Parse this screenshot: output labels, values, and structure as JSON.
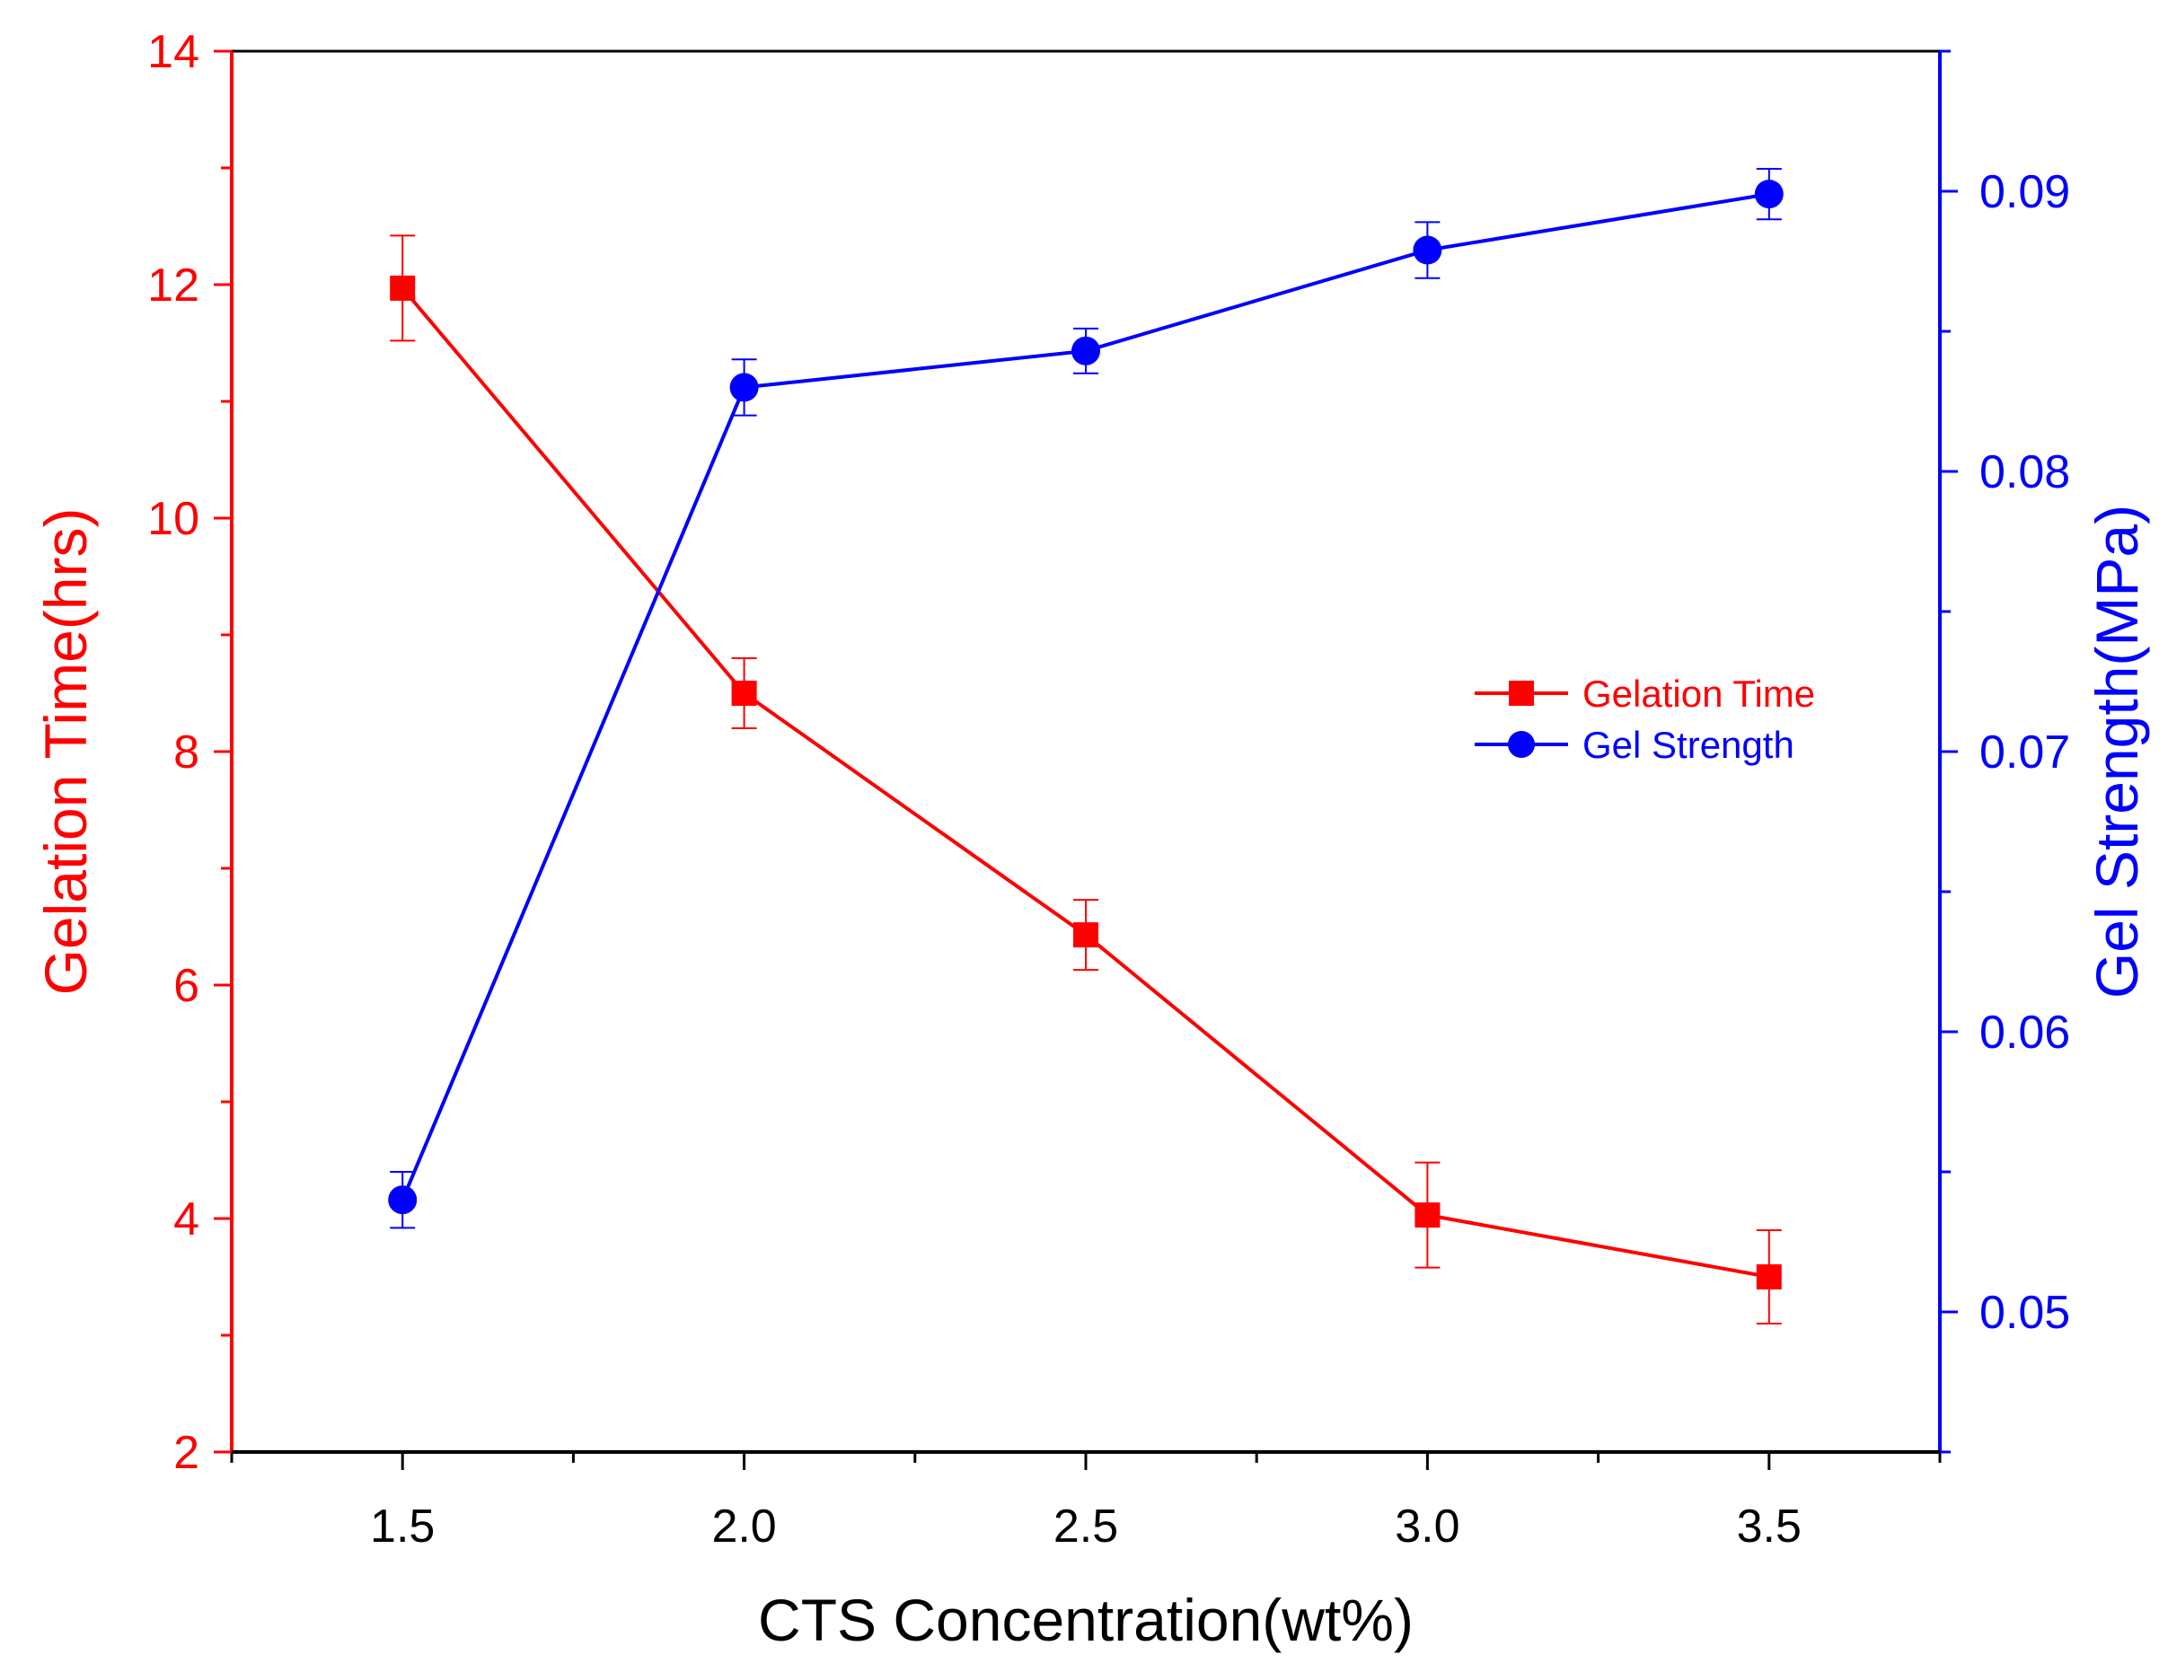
{
  "chart_data": {
    "type": "line",
    "title": "",
    "xlabel": "CTS Concentration(wt%)",
    "x": [
      1.5,
      2.0,
      2.5,
      3.0,
      3.5
    ],
    "xlim": [
      1.25,
      3.75
    ],
    "x_tick_labels": [
      "1.5",
      "2.0",
      "2.5",
      "3.0",
      "3.5"
    ],
    "x_tick_values": [
      1.5,
      2.0,
      2.5,
      3.0,
      3.5
    ],
    "y_left": {
      "label": "Gelation Time(hrs)",
      "lim": [
        2,
        14
      ],
      "tick_values": [
        2,
        4,
        6,
        8,
        10,
        12,
        14
      ],
      "tick_labels": [
        "2",
        "4",
        "6",
        "8",
        "10",
        "12",
        "14"
      ],
      "color": "#ff0000"
    },
    "y_right": {
      "label": "Gel Strength(MPa)",
      "lim": [
        0.045,
        0.095
      ],
      "tick_values": [
        0.05,
        0.06,
        0.07,
        0.08,
        0.09
      ],
      "tick_labels": [
        "0.05",
        "0.06",
        "0.07",
        "0.08",
        "0.09"
      ],
      "color": "#0000ff"
    },
    "series": [
      {
        "name": "Gelation Time",
        "axis": "left",
        "marker": "square",
        "color": "#ff0000",
        "values": [
          11.97,
          8.5,
          6.43,
          4.03,
          3.5
        ],
        "errors": [
          0.45,
          0.3,
          0.3,
          0.45,
          0.4
        ]
      },
      {
        "name": "Gel Strength",
        "axis": "right",
        "marker": "circle",
        "color": "#0000ff",
        "values": [
          0.054,
          0.083,
          0.0843,
          0.0879,
          0.0899
        ],
        "errors": [
          0.001,
          0.001,
          0.0008,
          0.001,
          0.0009
        ]
      }
    ],
    "legend": {
      "placement": "center-right",
      "entries": [
        "Gelation Time",
        "Gel Strength"
      ]
    },
    "grid": false
  }
}
